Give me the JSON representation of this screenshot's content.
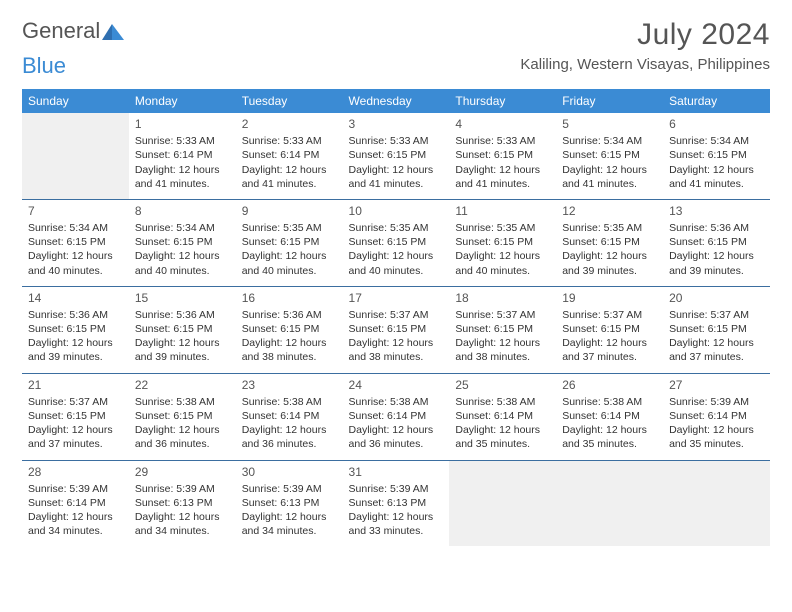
{
  "logo": {
    "part1": "General",
    "part2": "Blue"
  },
  "header": {
    "month_title": "July 2024",
    "location": "Kaliling, Western Visayas, Philippines"
  },
  "colors": {
    "header_bg": "#3b8bd4",
    "header_text": "#ffffff",
    "border": "#3b6ea0",
    "empty_bg": "#f0f0f0",
    "body_text": "#333333",
    "muted_text": "#555555"
  },
  "weekdays": [
    "Sunday",
    "Monday",
    "Tuesday",
    "Wednesday",
    "Thursday",
    "Friday",
    "Saturday"
  ],
  "weeks": [
    [
      {
        "empty": true
      },
      {
        "day": "1",
        "sunrise": "Sunrise: 5:33 AM",
        "sunset": "Sunset: 6:14 PM",
        "dl1": "Daylight: 12 hours",
        "dl2": "and 41 minutes."
      },
      {
        "day": "2",
        "sunrise": "Sunrise: 5:33 AM",
        "sunset": "Sunset: 6:14 PM",
        "dl1": "Daylight: 12 hours",
        "dl2": "and 41 minutes."
      },
      {
        "day": "3",
        "sunrise": "Sunrise: 5:33 AM",
        "sunset": "Sunset: 6:15 PM",
        "dl1": "Daylight: 12 hours",
        "dl2": "and 41 minutes."
      },
      {
        "day": "4",
        "sunrise": "Sunrise: 5:33 AM",
        "sunset": "Sunset: 6:15 PM",
        "dl1": "Daylight: 12 hours",
        "dl2": "and 41 minutes."
      },
      {
        "day": "5",
        "sunrise": "Sunrise: 5:34 AM",
        "sunset": "Sunset: 6:15 PM",
        "dl1": "Daylight: 12 hours",
        "dl2": "and 41 minutes."
      },
      {
        "day": "6",
        "sunrise": "Sunrise: 5:34 AM",
        "sunset": "Sunset: 6:15 PM",
        "dl1": "Daylight: 12 hours",
        "dl2": "and 41 minutes."
      }
    ],
    [
      {
        "day": "7",
        "sunrise": "Sunrise: 5:34 AM",
        "sunset": "Sunset: 6:15 PM",
        "dl1": "Daylight: 12 hours",
        "dl2": "and 40 minutes."
      },
      {
        "day": "8",
        "sunrise": "Sunrise: 5:34 AM",
        "sunset": "Sunset: 6:15 PM",
        "dl1": "Daylight: 12 hours",
        "dl2": "and 40 minutes."
      },
      {
        "day": "9",
        "sunrise": "Sunrise: 5:35 AM",
        "sunset": "Sunset: 6:15 PM",
        "dl1": "Daylight: 12 hours",
        "dl2": "and 40 minutes."
      },
      {
        "day": "10",
        "sunrise": "Sunrise: 5:35 AM",
        "sunset": "Sunset: 6:15 PM",
        "dl1": "Daylight: 12 hours",
        "dl2": "and 40 minutes."
      },
      {
        "day": "11",
        "sunrise": "Sunrise: 5:35 AM",
        "sunset": "Sunset: 6:15 PM",
        "dl1": "Daylight: 12 hours",
        "dl2": "and 40 minutes."
      },
      {
        "day": "12",
        "sunrise": "Sunrise: 5:35 AM",
        "sunset": "Sunset: 6:15 PM",
        "dl1": "Daylight: 12 hours",
        "dl2": "and 39 minutes."
      },
      {
        "day": "13",
        "sunrise": "Sunrise: 5:36 AM",
        "sunset": "Sunset: 6:15 PM",
        "dl1": "Daylight: 12 hours",
        "dl2": "and 39 minutes."
      }
    ],
    [
      {
        "day": "14",
        "sunrise": "Sunrise: 5:36 AM",
        "sunset": "Sunset: 6:15 PM",
        "dl1": "Daylight: 12 hours",
        "dl2": "and 39 minutes."
      },
      {
        "day": "15",
        "sunrise": "Sunrise: 5:36 AM",
        "sunset": "Sunset: 6:15 PM",
        "dl1": "Daylight: 12 hours",
        "dl2": "and 39 minutes."
      },
      {
        "day": "16",
        "sunrise": "Sunrise: 5:36 AM",
        "sunset": "Sunset: 6:15 PM",
        "dl1": "Daylight: 12 hours",
        "dl2": "and 38 minutes."
      },
      {
        "day": "17",
        "sunrise": "Sunrise: 5:37 AM",
        "sunset": "Sunset: 6:15 PM",
        "dl1": "Daylight: 12 hours",
        "dl2": "and 38 minutes."
      },
      {
        "day": "18",
        "sunrise": "Sunrise: 5:37 AM",
        "sunset": "Sunset: 6:15 PM",
        "dl1": "Daylight: 12 hours",
        "dl2": "and 38 minutes."
      },
      {
        "day": "19",
        "sunrise": "Sunrise: 5:37 AM",
        "sunset": "Sunset: 6:15 PM",
        "dl1": "Daylight: 12 hours",
        "dl2": "and 37 minutes."
      },
      {
        "day": "20",
        "sunrise": "Sunrise: 5:37 AM",
        "sunset": "Sunset: 6:15 PM",
        "dl1": "Daylight: 12 hours",
        "dl2": "and 37 minutes."
      }
    ],
    [
      {
        "day": "21",
        "sunrise": "Sunrise: 5:37 AM",
        "sunset": "Sunset: 6:15 PM",
        "dl1": "Daylight: 12 hours",
        "dl2": "and 37 minutes."
      },
      {
        "day": "22",
        "sunrise": "Sunrise: 5:38 AM",
        "sunset": "Sunset: 6:15 PM",
        "dl1": "Daylight: 12 hours",
        "dl2": "and 36 minutes."
      },
      {
        "day": "23",
        "sunrise": "Sunrise: 5:38 AM",
        "sunset": "Sunset: 6:14 PM",
        "dl1": "Daylight: 12 hours",
        "dl2": "and 36 minutes."
      },
      {
        "day": "24",
        "sunrise": "Sunrise: 5:38 AM",
        "sunset": "Sunset: 6:14 PM",
        "dl1": "Daylight: 12 hours",
        "dl2": "and 36 minutes."
      },
      {
        "day": "25",
        "sunrise": "Sunrise: 5:38 AM",
        "sunset": "Sunset: 6:14 PM",
        "dl1": "Daylight: 12 hours",
        "dl2": "and 35 minutes."
      },
      {
        "day": "26",
        "sunrise": "Sunrise: 5:38 AM",
        "sunset": "Sunset: 6:14 PM",
        "dl1": "Daylight: 12 hours",
        "dl2": "and 35 minutes."
      },
      {
        "day": "27",
        "sunrise": "Sunrise: 5:39 AM",
        "sunset": "Sunset: 6:14 PM",
        "dl1": "Daylight: 12 hours",
        "dl2": "and 35 minutes."
      }
    ],
    [
      {
        "day": "28",
        "sunrise": "Sunrise: 5:39 AM",
        "sunset": "Sunset: 6:14 PM",
        "dl1": "Daylight: 12 hours",
        "dl2": "and 34 minutes."
      },
      {
        "day": "29",
        "sunrise": "Sunrise: 5:39 AM",
        "sunset": "Sunset: 6:13 PM",
        "dl1": "Daylight: 12 hours",
        "dl2": "and 34 minutes."
      },
      {
        "day": "30",
        "sunrise": "Sunrise: 5:39 AM",
        "sunset": "Sunset: 6:13 PM",
        "dl1": "Daylight: 12 hours",
        "dl2": "and 34 minutes."
      },
      {
        "day": "31",
        "sunrise": "Sunrise: 5:39 AM",
        "sunset": "Sunset: 6:13 PM",
        "dl1": "Daylight: 12 hours",
        "dl2": "and 33 minutes."
      },
      {
        "empty": true
      },
      {
        "empty": true
      },
      {
        "empty": true
      }
    ]
  ]
}
